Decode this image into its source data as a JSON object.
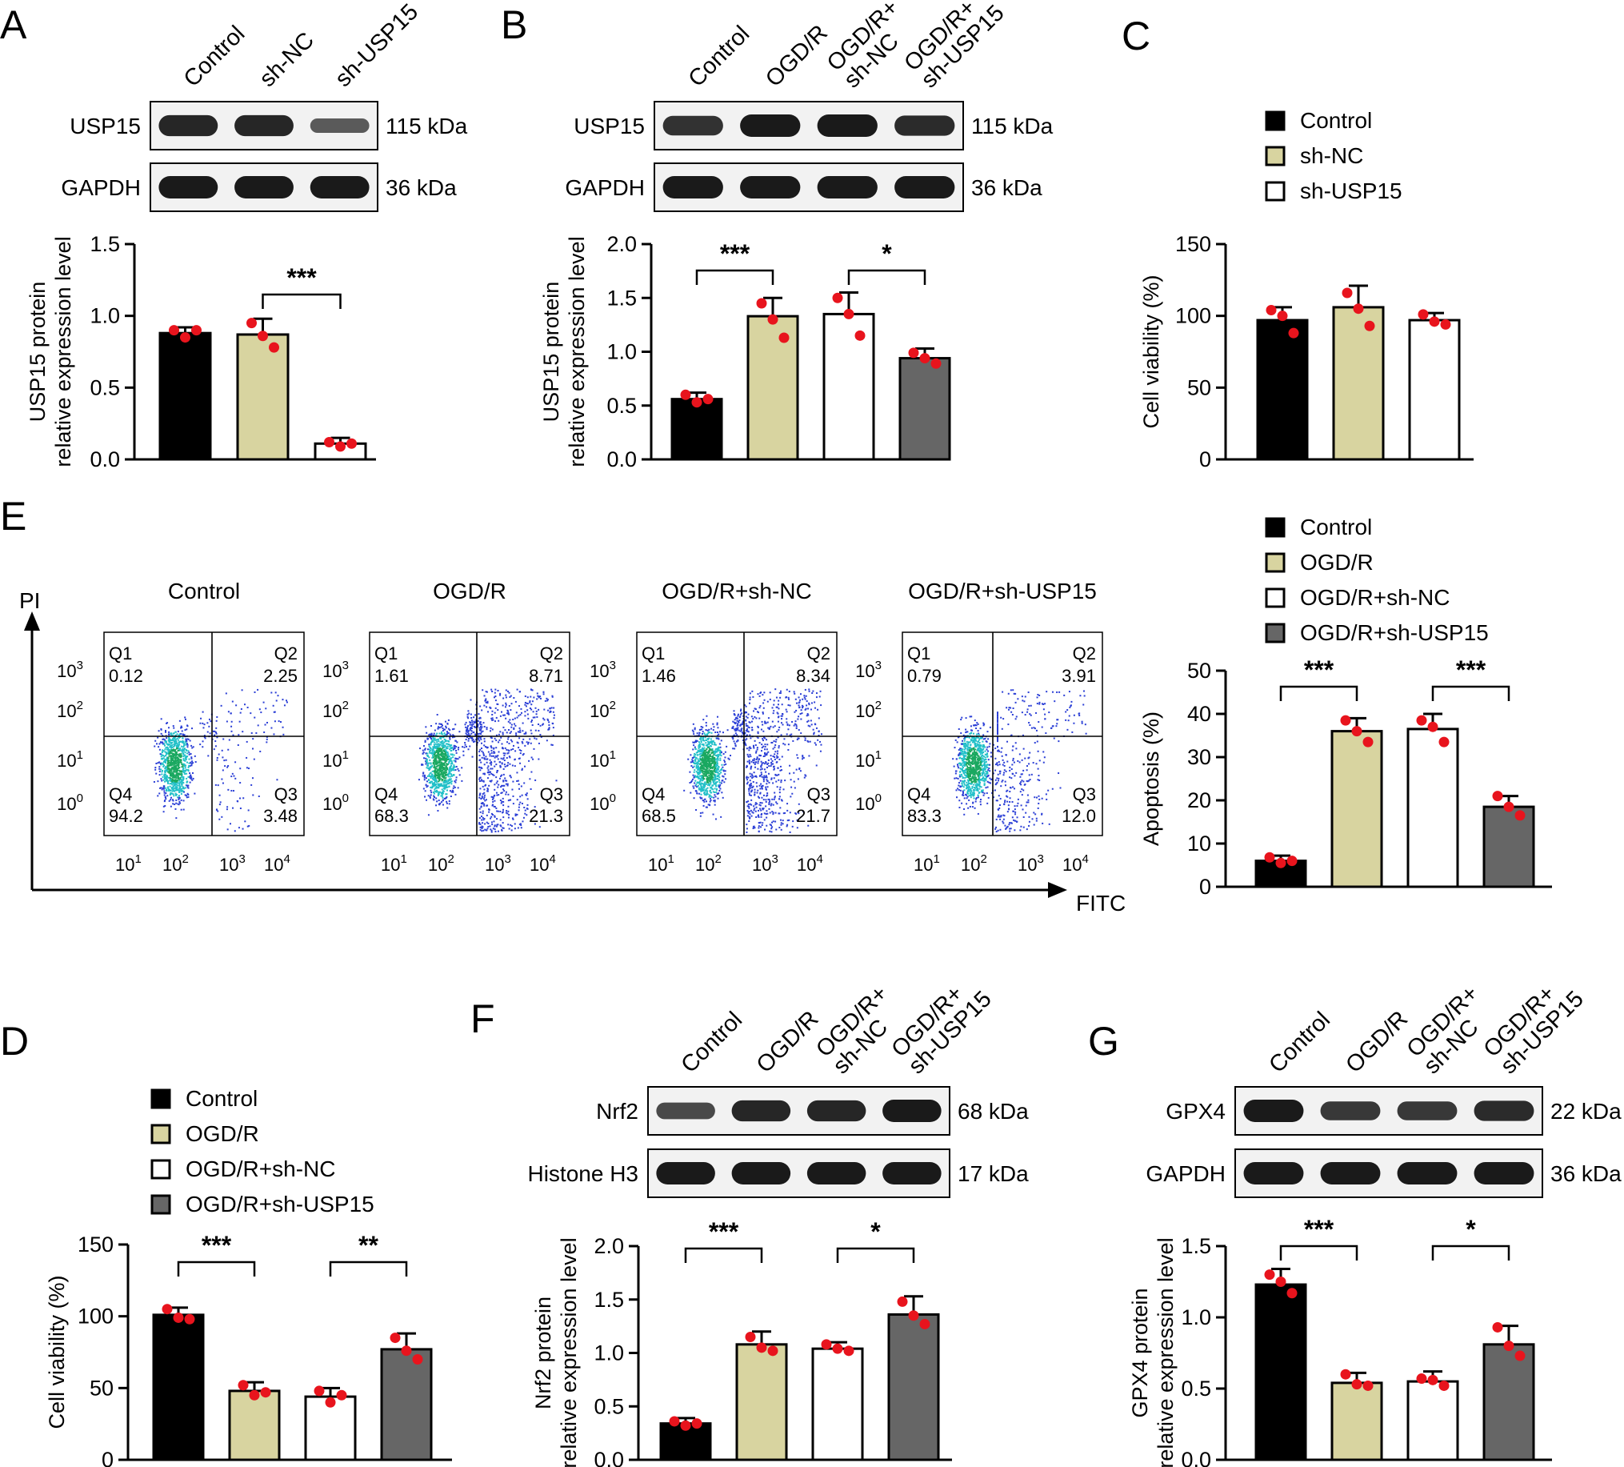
{
  "colors": {
    "control": "#000000",
    "ogdr": "#d8d4a0",
    "shnc": "#ffffff",
    "shusp15": "#666666",
    "dot": "#e8141d"
  },
  "panels": {
    "A": {
      "label": "A",
      "lanes": [
        "Control",
        "sh-NC",
        "sh-USP15"
      ],
      "blots": [
        {
          "name": "USP15",
          "kda": "115 kDa",
          "intensity": [
            0.9,
            0.9,
            0.45
          ]
        },
        {
          "name": "GAPDH",
          "kda": "36 kDa",
          "intensity": [
            1,
            1,
            1
          ]
        }
      ]
    },
    "B": {
      "label": "B",
      "lanes": [
        "Control",
        "OGD/R",
        "OGD/R+\nsh-NC",
        "OGD/R+\nsh-USP15"
      ],
      "blots": [
        {
          "name": "USP15",
          "kda": "115 kDa",
          "intensity": [
            0.8,
            1,
            1,
            0.85
          ]
        },
        {
          "name": "GAPDH",
          "kda": "36 kDa",
          "intensity": [
            1,
            1,
            1,
            1
          ]
        }
      ]
    },
    "C": {
      "label": "C"
    },
    "D": {
      "label": "D"
    },
    "E": {
      "label": "E",
      "y_axis": "PI",
      "x_axis": "FITC",
      "plots": [
        {
          "title": "Control",
          "q1": "0.12",
          "q2": "2.25",
          "q3": "3.48",
          "q4": "94.2"
        },
        {
          "title": "OGD/R",
          "q1": "1.61",
          "q2": "8.71",
          "q3": "21.3",
          "q4": "68.3"
        },
        {
          "title": "OGD/R+sh-NC",
          "q1": "1.46",
          "q2": "8.34",
          "q3": "21.7",
          "q4": "68.5"
        },
        {
          "title": "OGD/R+sh-USP15",
          "q1": "0.79",
          "q2": "3.91",
          "q3": "12.0",
          "q4": "83.3"
        }
      ],
      "quadrant_names": [
        "Q1",
        "Q2",
        "Q3",
        "Q4"
      ],
      "log_ticks": {
        "base": "10",
        "exponents": [
          "0",
          "1",
          "2",
          "3"
        ],
        "x_exponents": [
          "1",
          "2",
          "3",
          "4"
        ]
      }
    },
    "F": {
      "label": "F",
      "lanes": [
        "Control",
        "OGD/R",
        "OGD/R+\nsh-NC",
        "OGD/R+\nsh-USP15"
      ],
      "blots": [
        {
          "name": "Nrf2",
          "kda": "68 kDa",
          "intensity": [
            0.6,
            0.9,
            0.9,
            1
          ]
        },
        {
          "name": "Histone H3",
          "kda": "17 kDa",
          "intensity": [
            1,
            1,
            1,
            1
          ]
        }
      ]
    },
    "G": {
      "label": "G",
      "lanes": [
        "Control",
        "OGD/R",
        "OGD/R+\nsh-NC",
        "OGD/R+\nsh-USP15"
      ],
      "blots": [
        {
          "name": "GPX4",
          "kda": "22 kDa",
          "intensity": [
            1,
            0.75,
            0.75,
            0.85
          ]
        },
        {
          "name": "GAPDH",
          "kda": "36 kDa",
          "intensity": [
            1,
            1,
            1,
            1
          ]
        }
      ]
    }
  },
  "legends": {
    "three": [
      "Control",
      "sh-NC",
      "sh-USP15"
    ],
    "four": [
      "Control",
      "OGD/R",
      "OGD/R+sh-NC",
      "OGD/R+sh-USP15"
    ]
  },
  "chart_data": [
    {
      "id": "A",
      "type": "bar",
      "ylabel": "USP15 protein\nrelative expression level",
      "ylim": [
        0,
        1.5
      ],
      "yticks": [
        "0.0",
        "0.5",
        "1.0",
        "1.5"
      ],
      "categories": [
        "Control",
        "sh-NC",
        "sh-USP15"
      ],
      "values": [
        0.88,
        0.87,
        0.11
      ],
      "errors": [
        0.04,
        0.11,
        0.04
      ],
      "points": [
        [
          0.9,
          0.85,
          0.9
        ],
        [
          0.95,
          0.86,
          0.78
        ],
        [
          0.12,
          0.09,
          0.11
        ]
      ],
      "significance": [
        {
          "from": 1,
          "to": 2,
          "label": "***"
        }
      ]
    },
    {
      "id": "B",
      "type": "bar",
      "ylabel": "USP15 protein\nrelative expression level",
      "ylim": [
        0,
        2.0
      ],
      "yticks": [
        "0.0",
        "0.5",
        "1.0",
        "1.5",
        "2.0"
      ],
      "categories": [
        "Control",
        "OGD/R",
        "OGD/R+sh-NC",
        "OGD/R+sh-USP15"
      ],
      "values": [
        0.56,
        1.33,
        1.35,
        0.94
      ],
      "errors": [
        0.06,
        0.17,
        0.2,
        0.09
      ],
      "points": [
        [
          0.6,
          0.53,
          0.56
        ],
        [
          1.45,
          1.3,
          1.13
        ],
        [
          1.5,
          1.35,
          1.15
        ],
        [
          0.99,
          0.94,
          0.89
        ]
      ],
      "significance": [
        {
          "from": 0,
          "to": 1,
          "label": "***"
        },
        {
          "from": 2,
          "to": 3,
          "label": "*"
        }
      ]
    },
    {
      "id": "C",
      "type": "bar",
      "ylabel": "Cell viability (%)",
      "ylim": [
        0,
        150
      ],
      "yticks": [
        "0",
        "50",
        "100",
        "150"
      ],
      "categories": [
        "Control",
        "sh-NC",
        "sh-USP15"
      ],
      "values": [
        97,
        106,
        97
      ],
      "errors": [
        9,
        15,
        5
      ],
      "points": [
        [
          104,
          100,
          88
        ],
        [
          116,
          105,
          93
        ],
        [
          101,
          96,
          94
        ]
      ],
      "significance": []
    },
    {
      "id": "E",
      "type": "bar",
      "ylabel": "Apoptosis (%)",
      "ylim": [
        0,
        50
      ],
      "yticks": [
        "0",
        "10",
        "20",
        "30",
        "40",
        "50"
      ],
      "categories": [
        "Control",
        "OGD/R",
        "OGD/R+sh-NC",
        "OGD/R+sh-USP15"
      ],
      "values": [
        6,
        36,
        36.5,
        18.5
      ],
      "errors": [
        1.2,
        3,
        3.5,
        2.5
      ],
      "points": [
        [
          6.8,
          5.5,
          6
        ],
        [
          38.5,
          36,
          33.5
        ],
        [
          38.5,
          37,
          33.5
        ],
        [
          21,
          18.5,
          16.5
        ]
      ],
      "significance": [
        {
          "from": 0,
          "to": 1,
          "label": "***"
        },
        {
          "from": 2,
          "to": 3,
          "label": "***"
        }
      ]
    },
    {
      "id": "D",
      "type": "bar",
      "ylabel": "Cell viability (%)",
      "ylim": [
        0,
        150
      ],
      "yticks": [
        "0",
        "50",
        "100",
        "150"
      ],
      "categories": [
        "Control",
        "OGD/R",
        "OGD/R+sh-NC",
        "OGD/R+sh-USP15"
      ],
      "values": [
        101,
        48,
        44,
        77
      ],
      "errors": [
        5,
        6,
        6,
        11
      ],
      "points": [
        [
          105,
          99,
          98
        ],
        [
          52,
          45,
          47
        ],
        [
          48,
          40,
          45
        ],
        [
          85,
          76,
          70
        ]
      ],
      "significance": [
        {
          "from": 0,
          "to": 1,
          "label": "***"
        },
        {
          "from": 2,
          "to": 3,
          "label": "**"
        }
      ]
    },
    {
      "id": "F",
      "type": "bar",
      "ylabel": "Nrf2 protein\nrelative expression level",
      "ylim": [
        0,
        2.0
      ],
      "yticks": [
        "0.0",
        "0.5",
        "1.0",
        "1.5",
        "2.0"
      ],
      "categories": [
        "Control",
        "OGD/R",
        "OGD/R+sh-NC",
        "OGD/R+sh-USP15"
      ],
      "values": [
        0.34,
        1.08,
        1.04,
        1.36
      ],
      "errors": [
        0.05,
        0.12,
        0.06,
        0.17
      ],
      "points": [
        [
          0.36,
          0.32,
          0.34
        ],
        [
          1.15,
          1.05,
          1.02
        ],
        [
          1.08,
          1.04,
          1.02
        ],
        [
          1.48,
          1.35,
          1.27
        ]
      ],
      "significance": [
        {
          "from": 0,
          "to": 1,
          "label": "***"
        },
        {
          "from": 2,
          "to": 3,
          "label": "*"
        }
      ]
    },
    {
      "id": "G",
      "type": "bar",
      "ylabel": "GPX4 protein\nrelative expression level",
      "ylim": [
        0,
        1.5
      ],
      "yticks": [
        "0.0",
        "0.5",
        "1.0",
        "1.5"
      ],
      "categories": [
        "Control",
        "OGD/R",
        "OGD/R+sh-NC",
        "OGD/R+sh-USP15"
      ],
      "values": [
        1.23,
        0.54,
        0.55,
        0.81
      ],
      "errors": [
        0.11,
        0.07,
        0.07,
        0.13
      ],
      "points": [
        [
          1.3,
          1.25,
          1.17
        ],
        [
          0.6,
          0.53,
          0.52
        ],
        [
          0.57,
          0.56,
          0.52
        ],
        [
          0.93,
          0.8,
          0.73
        ]
      ],
      "significance": [
        {
          "from": 0,
          "to": 1,
          "label": "***"
        },
        {
          "from": 2,
          "to": 3,
          "label": "*"
        }
      ]
    }
  ]
}
